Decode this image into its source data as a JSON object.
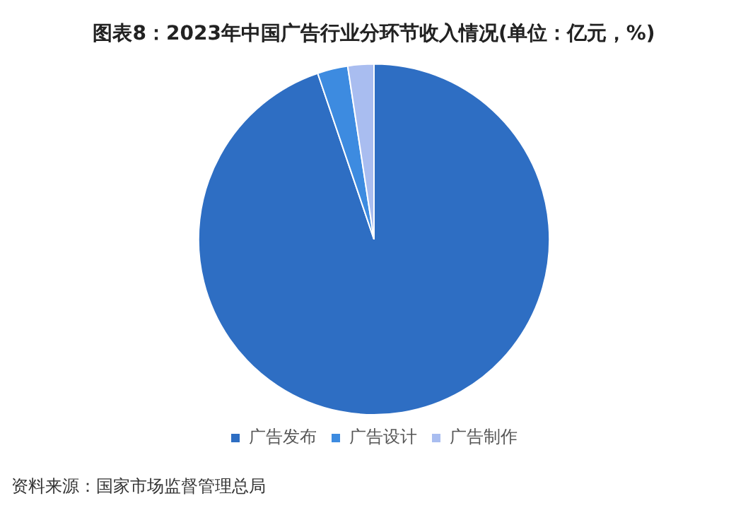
{
  "chart_data": {
    "type": "pie",
    "title": "图表8：2023年中国广告行业分环节收入情况(单位：亿元，%)",
    "categories": [
      "广告发布",
      "广告设计",
      "广告制作"
    ],
    "values": [
      94.8,
      2.8,
      2.4
    ],
    "colors": [
      "#2e6ec3",
      "#3d8be0",
      "#a9bdf0"
    ],
    "legend": "bottom",
    "annotations": [
      "资料来源：国家市场监督管理总局"
    ]
  }
}
